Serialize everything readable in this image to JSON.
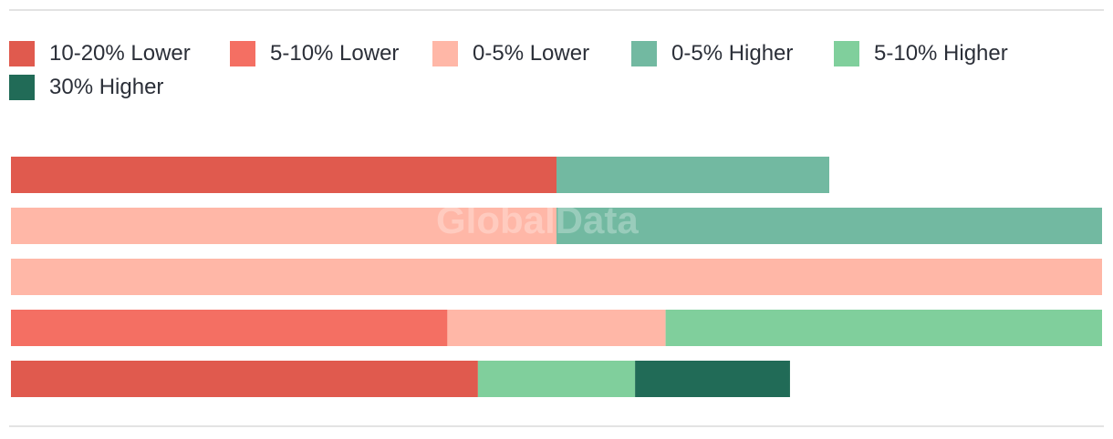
{
  "watermark": "GlobalData",
  "chart_data": {
    "type": "bar",
    "orientation": "horizontal",
    "stacked": true,
    "normalized_percent": true,
    "legend_placement": "top-left",
    "grid": false,
    "xlim": [
      0,
      100
    ],
    "series": [
      {
        "key": "s1",
        "name": "10-20% Lower",
        "color": "#e05a4e",
        "values": [
          50,
          0,
          0,
          0,
          42.8
        ]
      },
      {
        "key": "s2",
        "name": "5-10% Lower",
        "color": "#f46f63",
        "values": [
          0,
          0,
          0,
          40,
          0
        ]
      },
      {
        "key": "s3",
        "name": "0-5% Lower",
        "color": "#ffb7a7",
        "values": [
          0,
          50,
          100,
          20,
          0
        ]
      },
      {
        "key": "s4",
        "name": "0-5% Higher",
        "color": "#72b9a1",
        "values": [
          25,
          50,
          0,
          0,
          0
        ]
      },
      {
        "key": "s5",
        "name": "5-10% Higher",
        "color": "#80cf9c",
        "values": [
          0,
          0,
          0,
          40,
          14.4
        ]
      },
      {
        "key": "s6",
        "name": "30% Higher",
        "color": "#216b57",
        "values": [
          0,
          0,
          0,
          0,
          14.2
        ]
      }
    ]
  }
}
